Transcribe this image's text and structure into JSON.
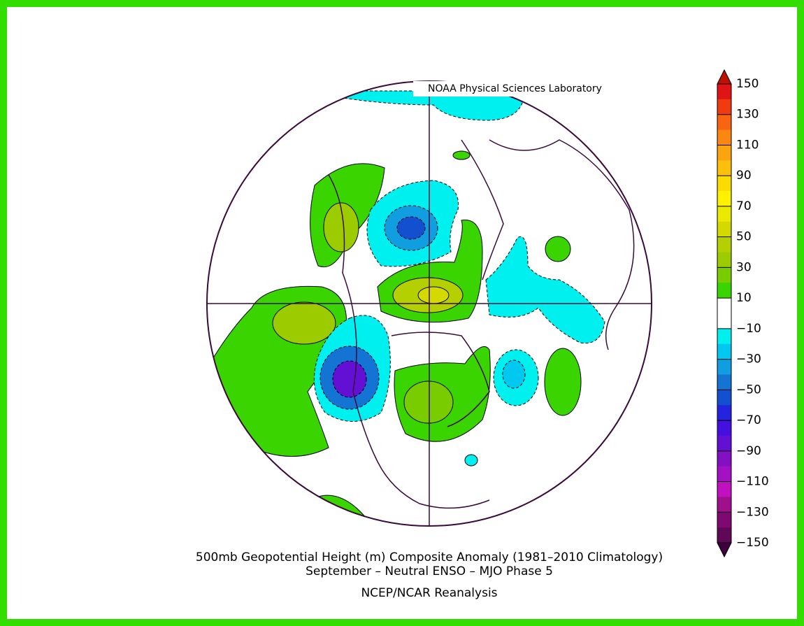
{
  "header": {
    "credit": "NOAA Physical Sciences Laboratory"
  },
  "title_lines": [
    "500mb Geopotential Height (m) Composite Anomaly (1981–2010 Climatology)",
    "September – Neutral ENSO – MJO Phase 5"
  ],
  "source": "NCEP/NCAR Reanalysis",
  "colorbar": {
    "range": [
      -150,
      150
    ],
    "ticks": [
      150,
      130,
      110,
      90,
      70,
      50,
      30,
      10,
      {
        "value": -10,
        "label": "−10"
      },
      {
        "value": -30,
        "label": "−30"
      },
      {
        "value": -50,
        "label": "−50"
      },
      {
        "value": -70,
        "label": "−70"
      },
      {
        "value": -90,
        "label": "−90"
      },
      {
        "value": -110,
        "label": "−110"
      },
      {
        "value": -130,
        "label": "−130"
      },
      {
        "value": -150,
        "label": "−150"
      }
    ],
    "colors": [
      "#e01414",
      "#f03a10",
      "#f86410",
      "#fa8810",
      "#fca410",
      "#fcc00c",
      "#fcdc00",
      "#fef200",
      "#eaea00",
      "#d4da00",
      "#b4d000",
      "#9ccc00",
      "#78cc00",
      "#3ad400",
      "#ffffff",
      "#ffffff",
      "#00f0f0",
      "#00c8f0",
      "#109ee0",
      "#1474d4",
      "#1250d0",
      "#2424e0",
      "#4410e0",
      "#6410d4",
      "#8410c4",
      "#a410c4",
      "#c010c0",
      "#a0108c",
      "#800872",
      "#600858"
    ],
    "over_color": "#c01000",
    "under_color": "#400040"
  }
}
